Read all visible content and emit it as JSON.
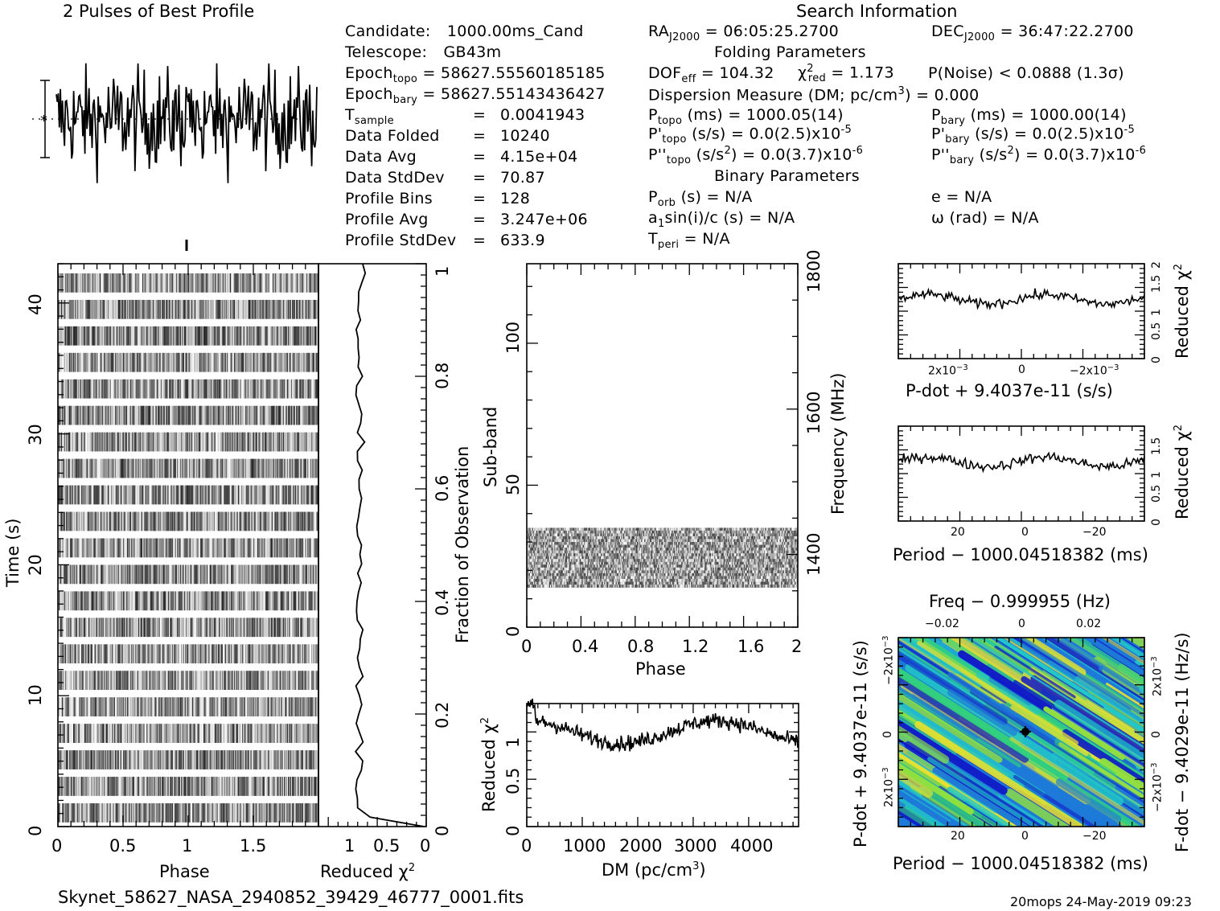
{
  "profile_title": "2 Pulses of Best Profile",
  "search_title": "Search Information",
  "folding_title": "Folding Parameters",
  "binary_title": "Binary Parameters",
  "left_info": [
    {
      "name": "Candidate:",
      "value": "1000.00ms_Cand"
    },
    {
      "name": "Telescope:",
      "value": "GB43m"
    },
    {
      "name": "Epoch",
      "sub": "topo",
      "value": "= 58627.55560185185"
    },
    {
      "name": "Epoch",
      "sub": "bary",
      "value": "= 58627.55143436427"
    },
    {
      "name": "T",
      "sub": "sample",
      "eq": "=",
      "value": "0.0041943"
    },
    {
      "name": "Data Folded",
      "eq": "=",
      "value": "10240"
    },
    {
      "name": "Data Avg",
      "eq": "=",
      "value": "4.15e+04"
    },
    {
      "name": "Data StdDev",
      "eq": "=",
      "value": "70.87"
    },
    {
      "name": "Profile Bins",
      "eq": "=",
      "value": "128"
    },
    {
      "name": "Profile Avg",
      "eq": "=",
      "value": "3.247e+06"
    },
    {
      "name": "Profile StdDev",
      "eq": "=",
      "value": "633.9"
    }
  ],
  "ra": {
    "name": "RA",
    "sub": "J2000",
    "value": "= 06:05:25.2700"
  },
  "dec": {
    "name": "DEC",
    "sub": "J2000",
    "value": "= 36:47:22.2700"
  },
  "dof": {
    "name": "DOF",
    "sub": "eff",
    "value": "= 104.32"
  },
  "chi2": {
    "name": "χ",
    "sup": "2",
    "sub": "red",
    "value": "= 1.173"
  },
  "pnoise": "P(Noise) < 0.0888   (1.3σ)",
  "dm_line": {
    "pre": "Dispersion Measure (DM; pc/cm",
    "sup": "3",
    "post": ") = 0.000"
  },
  "ptopo": {
    "name": "P",
    "sub": "topo",
    "value": "(ms) =  1000.05(14)"
  },
  "pbary": {
    "name": "P",
    "sub": "bary",
    "value": "(ms) =  1000.00(14)"
  },
  "pdtopo": {
    "name": "P'",
    "sub": "topo",
    "value": "(s/s) = 0.0(2.5)x10",
    "exp": "-5"
  },
  "pdbary": {
    "name": "P'",
    "sub": "bary",
    "value": "(s/s) = 0.0(2.5)x10",
    "exp": "-5"
  },
  "pddtopo": {
    "name": "P''",
    "sub": "topo",
    "value": "(s/s",
    "sup": "2",
    "value2": ") = 0.0(3.7)x10",
    "exp": "-6"
  },
  "pddbary": {
    "name": "P''",
    "sub": "bary",
    "value": "(s/s",
    "sup": "2",
    "value2": ") = 0.0(3.7)x10",
    "exp": "-6"
  },
  "porb": {
    "name": "P",
    "sub": "orb",
    "value": "(s) = N/A"
  },
  "asini": {
    "name": "a",
    "sub": "1",
    "value": "sin(i)/c (s) = N/A"
  },
  "tperi": {
    "name": "T",
    "sub": "peri",
    "value": "= N/A"
  },
  "ecc": "e = N/A",
  "omega": "ω (rad) = N/A",
  "filename": "Skynet_58627_NASA_2940852_39429_46777_0001.fits",
  "footer_right": "20mops 24-May-2019 09:23",
  "axis_labels": {
    "time": "Time (s)",
    "phase": "Phase",
    "reduced_chi2": "Reduced χ",
    "chi2_sup": "2",
    "fraction": "Fraction of Observation",
    "subband": "Sub-band",
    "frequency": "Frequency (MHz)",
    "phase2": "Phase",
    "dm": "DM (pc/cm",
    "dm_sup": "3",
    "dm_close": ")",
    "pdot_x": "P-dot + 9.4037e-11 (s/s)",
    "period_x": "Period − 1000.04518382 (ms)",
    "freq_top": "Freq − 0.999955 (Hz)",
    "pdot_left": "P-dot + 9.4037e-11 (s/s)",
    "fdot_right": "F-dot − 9.4029e-11 (Hz/s)",
    "period_bottom": "Period − 1000.04518382 (ms)"
  },
  "ticks": {
    "time": [
      "0",
      "10",
      "20",
      "30",
      "40"
    ],
    "phase": [
      "0",
      "0.5",
      "1",
      "1.5"
    ],
    "chi2_bottom": [
      "1",
      "0.5",
      "0"
    ],
    "fraction": [
      "0",
      "0.2",
      "0.4",
      "0.6",
      "0.8",
      "1"
    ],
    "subband": [
      "0",
      "50",
      "100"
    ],
    "freq": [
      "1400",
      "1600",
      "1800"
    ],
    "phase2": [
      "0",
      "0.4",
      "0.8",
      "1.2",
      "1.6",
      "2"
    ],
    "dm": [
      "0",
      "1000",
      "2000",
      "3000",
      "4000"
    ],
    "dm_chi": [
      "0",
      "0.5",
      "1"
    ],
    "pdot_x": [
      "2x10",
      "0",
      "−2x10"
    ],
    "pdot_exp": "−3",
    "chi_small": [
      "0",
      "0.5",
      "1",
      "1.5",
      "2"
    ],
    "chi_small2": [
      "0",
      "0.5",
      "1",
      "1.5"
    ],
    "period_x": [
      "20",
      "0",
      "−20"
    ],
    "freq_top": [
      "−0.02",
      "0",
      "0.02"
    ],
    "pdot_left": [
      "−2x10",
      "0",
      "2x10"
    ],
    "fdot_right": [
      "2x10",
      "0",
      "−2x10"
    ]
  },
  "chart_data": [
    {
      "type": "line",
      "title": "2 Pulses of Best Profile",
      "x": "phase 0-2",
      "note": "noisy profile, 256 points",
      "ylim": [
        -1,
        1
      ]
    },
    {
      "type": "heatmap",
      "xlabel": "Phase",
      "ylabel": "Time (s)",
      "xlim": [
        0,
        2
      ],
      "ylim": [
        0,
        43
      ],
      "rows": 21
    },
    {
      "type": "line",
      "xlabel": "Reduced χ2",
      "ylabel": "Fraction of Observation",
      "xlim": [
        1.1,
        0
      ],
      "ylim": [
        0,
        1
      ]
    },
    {
      "type": "heatmap",
      "xlabel": "Phase",
      "ylabel": "Sub-band",
      "xlim": [
        0,
        2
      ],
      "ylim": [
        0,
        128
      ],
      "data_band": [
        14,
        35
      ],
      "freq_range": [
        1300,
        1800
      ]
    },
    {
      "type": "line",
      "xlabel": "DM (pc/cm3)",
      "ylabel": "Reduced χ2",
      "xlim": [
        0,
        4900
      ],
      "ylim": [
        0,
        1.3
      ]
    },
    {
      "type": "line",
      "xlabel": "P-dot + 9.4037e-11 (s/s)",
      "ylabel": "Reduced χ2",
      "ylim": [
        0,
        2
      ]
    },
    {
      "type": "line",
      "xlabel": "Period − 1000.04518382 (ms)",
      "ylabel": "Reduced χ2",
      "ylim": [
        0,
        2
      ]
    },
    {
      "type": "heatmap",
      "xlabel": "Period − 1000.04518382 (ms)",
      "ylabel": "P-dot + 9.4037e-11 (s/s)",
      "colors": [
        "#1018c8",
        "#1e7ad8",
        "#22c8c8",
        "#30d080",
        "#90e040",
        "#e8e030"
      ]
    }
  ]
}
